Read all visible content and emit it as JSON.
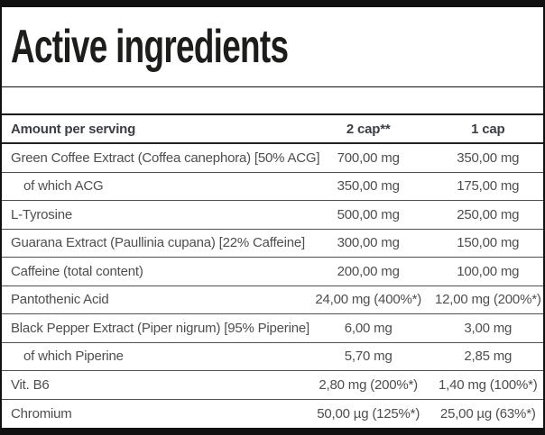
{
  "title": "Active ingredients",
  "table": {
    "columns": [
      "Amount per serving",
      "2 cap**",
      "1 cap"
    ],
    "rows": [
      {
        "name": "Green Coffee Extract (Coffea canephora) [50% ACG]",
        "amount_2cap": "700,00 mg",
        "amount_1cap": "350,00 mg",
        "indent": false
      },
      {
        "name": "of which ACG",
        "amount_2cap": "350,00 mg",
        "amount_1cap": "175,00 mg",
        "indent": true
      },
      {
        "name": "L-Tyrosine",
        "amount_2cap": "500,00 mg",
        "amount_1cap": "250,00 mg",
        "indent": false
      },
      {
        "name": "Guarana Extract (Paullinia cupana) [22% Caffeine]",
        "amount_2cap": "300,00 mg",
        "amount_1cap": "150,00 mg",
        "indent": false
      },
      {
        "name": "Caffeine (total content)",
        "amount_2cap": "200,00 mg",
        "amount_1cap": "100,00 mg",
        "indent": false
      },
      {
        "name": "Pantothenic Acid",
        "amount_2cap": "24,00 mg (400%*)",
        "amount_1cap": "12,00 mg (200%*)",
        "indent": false
      },
      {
        "name": "Black Pepper Extract (Piper nigrum) [95% Piperine]",
        "amount_2cap": "6,00 mg",
        "amount_1cap": "3,00 mg",
        "indent": false
      },
      {
        "name": "of which Piperine",
        "amount_2cap": "5,70 mg",
        "amount_1cap": "2,85 mg",
        "indent": true
      },
      {
        "name": "Vit. B6",
        "amount_2cap": "2,80 mg (200%*)",
        "amount_1cap": "1,40 mg (100%*)",
        "indent": false
      },
      {
        "name": "Chromium",
        "amount_2cap": "50,00 µg (125%*)",
        "amount_1cap": "25,00 µg (63%*)",
        "indent": false
      }
    ]
  },
  "colors": {
    "border": "#111111",
    "title": "#1d1d1b",
    "text": "#4e4e4e",
    "header-text": "#3b3e44",
    "separator": "#4f4f4f"
  }
}
